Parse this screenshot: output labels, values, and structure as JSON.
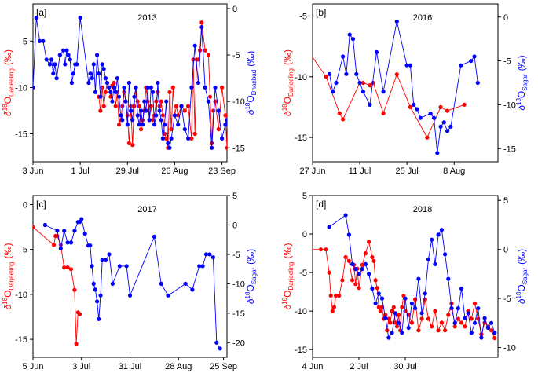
{
  "colors": {
    "darjeeling": "#ff0000",
    "secondary": "#0000ff",
    "axis": "#000000"
  },
  "chart_data": [
    {
      "type": "line",
      "tag": "[a]",
      "title": "2013",
      "ylabel_left": {
        "main": "δ",
        "sup": "18",
        "mid": "O",
        "sub": "Darjeeling",
        "unit": "(‰)"
      },
      "ylabel_right": {
        "main": "δ",
        "sup": "18",
        "mid": "O",
        "sub": "Dhanbad",
        "unit": "(‰)"
      },
      "xlim": [
        0,
        115
      ],
      "ylim_left": [
        -18,
        -1
      ],
      "ylim_right": [
        -16.5,
        0.5
      ],
      "x_ticks": [
        {
          "v": 0,
          "label": "3 Jun"
        },
        {
          "v": 28,
          "label": "1 Jul"
        },
        {
          "v": 56,
          "label": "29 Jul"
        },
        {
          "v": 84,
          "label": "26 Aug"
        },
        {
          "v": 112,
          "label": "23 Sep"
        }
      ],
      "y_ticks_left": [
        {
          "v": -5,
          "label": "-5"
        },
        {
          "v": -10,
          "label": "-10"
        },
        {
          "v": -15,
          "label": "-15"
        }
      ],
      "y_ticks_right": [
        {
          "v": 0,
          "label": "0"
        },
        {
          "v": -5,
          "label": "-5"
        },
        {
          "v": -10,
          "label": "-10"
        },
        {
          "v": -15,
          "label": "-15"
        }
      ],
      "series": [
        {
          "name": "Darjeeling",
          "axis": "left",
          "color": "#ff0000",
          "x": [
            39,
            40,
            41,
            42,
            43,
            44,
            45,
            46,
            47,
            48,
            49,
            50,
            51,
            52,
            53,
            54,
            55,
            56,
            57,
            58,
            59,
            60,
            61,
            62,
            63,
            64,
            65,
            66,
            67,
            68,
            69,
            70,
            71,
            72,
            73,
            74,
            75,
            76,
            77,
            78,
            79,
            80,
            81,
            82,
            83,
            84,
            85,
            86,
            88,
            90,
            92,
            94,
            95,
            96,
            97,
            98,
            99,
            100,
            102,
            104,
            105,
            106,
            107,
            108,
            110,
            112,
            114,
            115
          ],
          "y": [
            -11.0,
            -12.5,
            -10.0,
            -12.0,
            -10.5,
            -9.5,
            -10.0,
            -11.0,
            -9.8,
            -9.5,
            -12.0,
            -10.5,
            -14.0,
            -13.5,
            -12.0,
            -10.5,
            -11.5,
            -13.0,
            -16.0,
            -12.0,
            -16.2,
            -12.0,
            -10.0,
            -11.5,
            -12.0,
            -14.5,
            -13.5,
            -12.5,
            -10.0,
            -11.5,
            -13.5,
            -12.0,
            -13.5,
            -13.0,
            -11.5,
            -10.5,
            -12.0,
            -11.5,
            -13.0,
            -15.0,
            -15.5,
            -16.5,
            -10.5,
            -14.5,
            -10.0,
            -13.0,
            -12.0,
            -13.0,
            -12.0,
            -12.5,
            -12.0,
            -15.5,
            -7.0,
            -15.0,
            -7.0,
            -7.0,
            -6.0,
            -3.0,
            -6.0,
            -6.5,
            -11.0,
            -16.0,
            -12.5,
            -11.5,
            -14.5,
            -10.0,
            -13.0,
            -16.5
          ]
        },
        {
          "name": "Dhanbad",
          "axis": "right",
          "color": "#0000ff",
          "x": [
            0,
            2,
            4,
            6,
            8,
            10,
            11,
            12,
            13,
            14,
            16,
            18,
            19,
            20,
            21,
            22,
            23,
            24,
            25,
            26,
            28,
            33,
            34,
            35,
            36,
            37,
            38,
            39,
            40,
            41,
            42,
            43,
            44,
            45,
            46,
            47,
            48,
            49,
            50,
            51,
            52,
            53,
            54,
            55,
            56,
            57,
            58,
            59,
            60,
            61,
            62,
            63,
            64,
            65,
            66,
            67,
            68,
            69,
            70,
            71,
            72,
            73,
            74,
            75,
            76,
            77,
            78,
            79,
            80,
            81,
            82,
            84,
            86,
            88,
            90,
            92,
            94,
            96,
            98,
            100,
            102,
            104,
            106,
            108,
            110,
            112,
            114,
            115
          ],
          "y": [
            -8.5,
            -1.0,
            -3.5,
            -3.5,
            -5.5,
            -6.0,
            -5.5,
            -7.0,
            -6.0,
            -7.5,
            -5.0,
            -4.5,
            -6.0,
            -4.5,
            -5.0,
            -5.5,
            -8.0,
            -7.0,
            -6.0,
            -6.0,
            -1.0,
            -8.0,
            -7.0,
            -7.5,
            -6.0,
            -9.0,
            -5.0,
            -7.0,
            -9.5,
            -6.0,
            -6.5,
            -7.5,
            -8.0,
            -8.5,
            -9.0,
            -10.0,
            -8.5,
            -9.0,
            -7.5,
            -9.5,
            -11.5,
            -12.0,
            -8.5,
            -10.0,
            -12.5,
            -8.0,
            -11.0,
            -12.0,
            -9.5,
            -8.5,
            -11.5,
            -12.5,
            -11.0,
            -12.5,
            -10.0,
            -11.0,
            -8.5,
            -12.0,
            -8.5,
            -9.0,
            -12.5,
            -11.5,
            -8.0,
            -11.0,
            -12.0,
            -14.0,
            -12.5,
            -10.0,
            -14.5,
            -15.0,
            -14.0,
            -11.5,
            -12.5,
            -10.5,
            -13.0,
            -14.0,
            -8.5,
            -4.0,
            -8.0,
            -2.0,
            -8.5,
            -10.0,
            -15.0,
            -8.5,
            -11.0,
            -14.0,
            -12.5,
            -12.0
          ]
        }
      ]
    },
    {
      "type": "line",
      "tag": "[b]",
      "title": "2016",
      "ylabel_left": {
        "main": "δ",
        "sup": "18",
        "mid": "O",
        "sub": "Darjeeling",
        "unit": "(‰)"
      },
      "ylabel_right": {
        "main": "δ",
        "sup": "18",
        "mid": "O",
        "sub": "Sagar",
        "unit": "(‰)"
      },
      "xlim": [
        0,
        55
      ],
      "ylim_left": [
        -17,
        -4
      ],
      "ylim_right": [
        -16.5,
        1.5
      ],
      "x_ticks": [
        {
          "v": 0,
          "label": "27 Jun"
        },
        {
          "v": 14,
          "label": "11 Jul"
        },
        {
          "v": 28,
          "label": "25 Jul"
        },
        {
          "v": 42,
          "label": "8 Aug"
        }
      ],
      "y_ticks_left": [
        {
          "v": -5,
          "label": "-5"
        },
        {
          "v": -10,
          "label": "-10"
        },
        {
          "v": -15,
          "label": "-15"
        }
      ],
      "y_ticks_right": [
        {
          "v": 0,
          "label": "0"
        },
        {
          "v": -5,
          "label": "-5"
        },
        {
          "v": -10,
          "label": "-10"
        },
        {
          "v": -15,
          "label": "-15"
        }
      ],
      "series": [
        {
          "name": "Darjeeling",
          "axis": "left",
          "color": "#ff0000",
          "x": [
            -1,
            4,
            8,
            9,
            14,
            15,
            17,
            18,
            21,
            25,
            29,
            34,
            38,
            40,
            45
          ],
          "y": [
            -8.0,
            -10.0,
            -13.0,
            -13.5,
            -10.5,
            -10.5,
            -10.7,
            -10.5,
            -13.0,
            -9.8,
            -12.5,
            -15.0,
            -12.5,
            -12.8,
            -12.3
          ]
        },
        {
          "name": "Sagar",
          "axis": "right",
          "color": "#0000ff",
          "x": [
            5,
            6,
            7,
            9,
            10,
            11,
            12,
            13,
            14,
            15,
            17,
            19,
            21,
            25,
            28,
            29,
            30,
            31,
            32,
            35,
            36,
            37,
            38,
            39,
            40,
            41,
            44,
            47,
            48,
            49
          ],
          "y": [
            -6.5,
            -8.5,
            -7.5,
            -4.5,
            -6.5,
            -2.0,
            -2.5,
            -6.5,
            -7.5,
            -8.5,
            -10.0,
            -4.0,
            -8.5,
            -0.5,
            -5.5,
            -5.5,
            -10.0,
            -10.5,
            -11.5,
            -11.0,
            -11.5,
            -15.5,
            -12.5,
            -12.0,
            -13.0,
            -12.5,
            -5.5,
            -5.0,
            -4.5,
            -7.5
          ]
        }
      ]
    },
    {
      "type": "line",
      "tag": "[c]",
      "title": "2017",
      "ylabel_left": {
        "main": "δ",
        "sup": "18",
        "mid": "O",
        "sub": "Darjeeling",
        "unit": "(‰)"
      },
      "ylabel_right": {
        "main": "δ",
        "sup": "18",
        "mid": "O",
        "sub": "Sagar",
        "unit": "(‰)"
      },
      "xlim": [
        0,
        112
      ],
      "ylim_left": [
        -17,
        1
      ],
      "ylim_right": [
        -22.5,
        5
      ],
      "x_ticks": [
        {
          "v": 0,
          "label": "5 Jun"
        },
        {
          "v": 28,
          "label": "3 Jul"
        },
        {
          "v": 56,
          "label": "31 Jul"
        },
        {
          "v": 84,
          "label": "28 Aug"
        },
        {
          "v": 110,
          "label": "25 Sep"
        }
      ],
      "y_ticks_left": [
        {
          "v": 0,
          "label": "0"
        },
        {
          "v": -5,
          "label": "-5"
        },
        {
          "v": -10,
          "label": "-10"
        },
        {
          "v": -15,
          "label": "-15"
        }
      ],
      "y_ticks_right": [
        {
          "v": 5,
          "label": "5"
        },
        {
          "v": 0,
          "label": "0"
        },
        {
          "v": -5,
          "label": "-5"
        },
        {
          "v": -10,
          "label": "-10"
        },
        {
          "v": -15,
          "label": "-15"
        },
        {
          "v": -20,
          "label": "-20"
        }
      ],
      "series": [
        {
          "name": "Darjeeling",
          "axis": "left",
          "color": "#ff0000",
          "x": [
            0,
            12,
            13,
            14,
            16,
            18,
            20,
            22,
            24,
            25,
            26,
            27
          ],
          "y": [
            -2.5,
            -4.5,
            -3.5,
            -3.5,
            -4.5,
            -7.0,
            -7.0,
            -7.2,
            -9.5,
            -15.5,
            -12.0,
            -12.2
          ]
        },
        {
          "name": "Sagar",
          "axis": "right",
          "color": "#0000ff",
          "x": [
            7,
            14,
            16,
            18,
            20,
            22,
            24,
            26,
            27,
            28,
            30,
            32,
            33,
            34,
            35,
            36,
            37,
            38,
            39,
            40,
            42,
            44,
            46,
            50,
            54,
            56,
            70,
            74,
            78,
            88,
            92,
            96,
            98,
            100,
            102,
            104,
            106,
            108
          ],
          "y": [
            0.0,
            -1.0,
            -4.0,
            -1.0,
            -3.0,
            -3.0,
            -1.0,
            0.5,
            0.5,
            1.0,
            -1.5,
            -3.5,
            -3.5,
            -7.0,
            -10.0,
            -11.0,
            -13.0,
            -16.0,
            -12.0,
            -6.0,
            -6.0,
            -5.0,
            -10.0,
            -7.0,
            -7.0,
            -12.0,
            -2.0,
            -10.0,
            -12.0,
            -10.0,
            -11.0,
            -7.0,
            -7.0,
            -5.0,
            -5.0,
            -5.5,
            -20.0,
            -21.0
          ]
        }
      ]
    },
    {
      "type": "line",
      "tag": "[d]",
      "title": "2018",
      "ylabel_left": {
        "main": "δ",
        "sup": "18",
        "mid": "O",
        "sub": "Darjeeling",
        "unit": "(‰)"
      },
      "ylabel_right": {
        "main": "δ",
        "sup": "18",
        "mid": "O",
        "sub": "Sagar",
        "unit": "(‰)"
      },
      "xlim": [
        0,
        112
      ],
      "ylim_left": [
        -16,
        5
      ],
      "ylim_right": [
        -11,
        5.5
      ],
      "x_ticks": [
        {
          "v": 0,
          "label": "4 Jun"
        },
        {
          "v": 28,
          "label": "2 Jul"
        },
        {
          "v": 56,
          "label": "30 Jul"
        }
      ],
      "y_ticks_left": [
        {
          "v": 5,
          "label": "5"
        },
        {
          "v": 0,
          "label": "0"
        },
        {
          "v": -5,
          "label": "-5"
        },
        {
          "v": -10,
          "label": "-10"
        },
        {
          "v": -15,
          "label": "-15"
        }
      ],
      "y_ticks_right": [
        {
          "v": 5,
          "label": "5"
        },
        {
          "v": 0,
          "label": "0"
        },
        {
          "v": -5,
          "label": "-5"
        },
        {
          "v": -10,
          "label": "-10"
        }
      ],
      "series": [
        {
          "name": "Darjeeling",
          "axis": "left",
          "color": "#ff0000",
          "x": [
            -1,
            5,
            8,
            10,
            11,
            12,
            13,
            14,
            16,
            18,
            20,
            22,
            24,
            25,
            26,
            27,
            28,
            30,
            32,
            34,
            36,
            37,
            38,
            39,
            40,
            41,
            42,
            43,
            44,
            45,
            46,
            47,
            48,
            49,
            50,
            51,
            52,
            53,
            54,
            55,
            56,
            58,
            60,
            62,
            64,
            66,
            68,
            70,
            72,
            74,
            76,
            78,
            80,
            82,
            84,
            86,
            88,
            90,
            92,
            94,
            96,
            98,
            100,
            102,
            104,
            106,
            108,
            110
          ],
          "y": [
            -2.0,
            -2.0,
            -2.0,
            -5.0,
            -8.0,
            -10.0,
            -9.5,
            -8.0,
            -8.0,
            -6.0,
            -3.0,
            -3.5,
            -6.0,
            -4.0,
            -6.5,
            -4.5,
            -7.0,
            -4.0,
            -2.5,
            -1.0,
            -3.0,
            -3.5,
            -6.0,
            -7.0,
            -9.5,
            -10.0,
            -9.5,
            -11.0,
            -10.5,
            -12.5,
            -11.0,
            -11.5,
            -10.0,
            -9.5,
            -11.5,
            -12.0,
            -10.5,
            -12.5,
            -9.5,
            -8.0,
            -10.0,
            -10.5,
            -11.5,
            -8.5,
            -12.5,
            -11.0,
            -8.5,
            -11.0,
            -12.0,
            -10.0,
            -12.5,
            -11.5,
            -12.5,
            -10.5,
            -9.0,
            -12.0,
            -11.0,
            -11.5,
            -12.0,
            -10.0,
            -11.0,
            -9.0,
            -11.0,
            -13.0,
            -11.5,
            -12.0,
            -12.5,
            -13.5
          ]
        },
        {
          "name": "Sagar",
          "axis": "right",
          "color": "#0000ff",
          "x": [
            10,
            20,
            22,
            24,
            26,
            28,
            30,
            32,
            34,
            36,
            38,
            40,
            42,
            44,
            46,
            48,
            50,
            52,
            54,
            56,
            58,
            60,
            62,
            64,
            66,
            68,
            70,
            72,
            74,
            76,
            78,
            80,
            82,
            84,
            86,
            88,
            90,
            92,
            94,
            96,
            98,
            100,
            102,
            104,
            106,
            108,
            110
          ],
          "y": [
            2.3,
            3.5,
            1.5,
            -1.5,
            -2.0,
            -2.5,
            -2.0,
            -1.5,
            -2.5,
            -4.0,
            -5.5,
            -4.5,
            -5.0,
            -7.0,
            -9.0,
            -8.5,
            -6.5,
            -7.5,
            -8.5,
            -5.0,
            -8.0,
            -5.5,
            -6.0,
            -3.0,
            -6.5,
            -4.5,
            -1.0,
            1.0,
            -1.5,
            1.5,
            2.0,
            -0.5,
            -3.0,
            -6.0,
            -7.5,
            -6.0,
            -4.0,
            -7.0,
            -6.5,
            -8.5,
            -7.5,
            -6.0,
            -9.0,
            -7.0,
            -8.0,
            -7.5,
            -8.5
          ]
        }
      ]
    }
  ]
}
